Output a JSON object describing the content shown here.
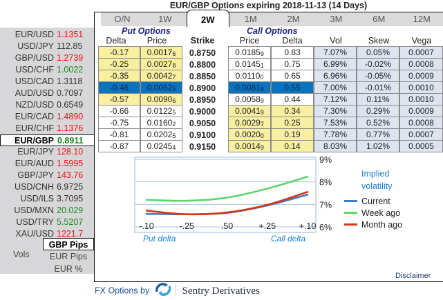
{
  "title": "EUR/GBP Options expiring 2018-11-13 (14 Days)",
  "rates": [
    {
      "pair": "EUR/USD",
      "value": "1.1351",
      "color": "red"
    },
    {
      "pair": "USD/JPY",
      "value": "112.85",
      "color": "dark"
    },
    {
      "pair": "GBP/USD",
      "value": "1.2739",
      "color": "red"
    },
    {
      "pair": "USD/CHF",
      "value": "1.0022",
      "color": "green"
    },
    {
      "pair": "USD/CAD",
      "value": "1.3118",
      "color": "dark"
    },
    {
      "pair": "AUD/USD",
      "value": "0.7097",
      "color": "dark"
    },
    {
      "pair": "NZD/USD",
      "value": "0.6549",
      "color": "dark"
    },
    {
      "pair": "EUR/CAD",
      "value": "1.4890",
      "color": "red"
    },
    {
      "pair": "EUR/CHF",
      "value": "1.1376",
      "color": "red"
    },
    {
      "pair": "EUR/GBP",
      "value": "0.8911",
      "color": "green",
      "selected": true
    },
    {
      "pair": "EUR/JPY",
      "value": "128.10",
      "color": "red"
    },
    {
      "pair": "EUR/AUD",
      "value": "1.5995",
      "color": "red"
    },
    {
      "pair": "GBP/JPY",
      "value": "143.76",
      "color": "red"
    },
    {
      "pair": "USD/CNH",
      "value": "6.9725",
      "color": "dark"
    },
    {
      "pair": "USD/ILS",
      "value": "3.7095",
      "color": "dark"
    },
    {
      "pair": "USD/MXN",
      "value": "20.029",
      "color": "green"
    },
    {
      "pair": "USD/TRY",
      "value": "5.5207",
      "color": "green"
    },
    {
      "pair": "XAU/USD",
      "value": "1221.7",
      "color": "red"
    }
  ],
  "units": {
    "label": "Vols",
    "options": [
      {
        "label": "GBP Pips",
        "active": true
      },
      {
        "label": "EUR Pips",
        "active": false
      },
      {
        "label": "EUR %",
        "active": false
      }
    ]
  },
  "tabs": [
    {
      "label": "O/N",
      "active": false
    },
    {
      "label": "1W",
      "active": false
    },
    {
      "label": "2W",
      "active": true
    },
    {
      "label": "1M",
      "active": false
    },
    {
      "label": "2M",
      "active": false
    },
    {
      "label": "3M",
      "active": false
    },
    {
      "label": "6M",
      "active": false
    },
    {
      "label": "12M",
      "active": false
    }
  ],
  "sections": {
    "put": "Put Options",
    "call": "Call Options"
  },
  "headers": {
    "put_delta": "Delta",
    "put_price": "Price",
    "strike": "Strike",
    "call_price": "Price",
    "call_delta": "Delta",
    "vol": "Vol",
    "skew": "Skew",
    "vega": "Vega"
  },
  "rows": [
    {
      "put_delta": "-0.17",
      "put_price": "0.0017",
      "put_price_pip": "6",
      "strike": "0.8750",
      "call_price": "0.0185",
      "call_price_pip": "9",
      "call_delta": "0.83",
      "vol": "7.07%",
      "skew": "0.05%",
      "vega": "0.0007",
      "put_itm": false
    },
    {
      "put_delta": "-0.25",
      "put_price": "0.0027",
      "put_price_pip": "8",
      "strike": "0.8800",
      "call_price": "0.0145",
      "call_price_pip": "1",
      "call_delta": "0.75",
      "vol": "6.99%",
      "skew": "-0.02%",
      "vega": "0.0008",
      "put_itm": false
    },
    {
      "put_delta": "-0.35",
      "put_price": "0.0042",
      "put_price_pip": "7",
      "strike": "0.8850",
      "call_price": "0.0110",
      "call_price_pip": "0",
      "call_delta": "0.65",
      "vol": "6.96%",
      "skew": "-0.05%",
      "vega": "0.0009",
      "put_itm": false
    },
    {
      "put_delta": "-0.46",
      "put_price": "0.0062",
      "put_price_pip": "5",
      "strike": "0.8900",
      "call_price": "0.0081",
      "call_price_pip": "8",
      "call_delta": "0.55",
      "vol": "7.00%",
      "skew": "-0.01%",
      "vega": "0.0010",
      "atm": true
    },
    {
      "put_delta": "-0.57",
      "put_price": "0.0090",
      "put_price_pip": "6",
      "strike": "0.8950",
      "call_price": "0.0058",
      "call_price_pip": "9",
      "call_delta": "0.44",
      "vol": "7.12%",
      "skew": "0.11%",
      "vega": "0.0010",
      "put_itm": false
    },
    {
      "put_delta": "-0.66",
      "put_price": "0.0122",
      "put_price_pip": "5",
      "strike": "0.9000",
      "call_price": "0.0041",
      "call_price_pip": "9",
      "call_delta": "0.34",
      "vol": "7.30%",
      "skew": "0.29%",
      "vega": "0.0009",
      "put_itm": true
    },
    {
      "put_delta": "-0.75",
      "put_price": "0.0160",
      "put_price_pip": "2",
      "strike": "0.9050",
      "call_price": "0.0029",
      "call_price_pip": "7",
      "call_delta": "0.25",
      "vol": "7.53%",
      "skew": "0.52%",
      "vega": "0.0008",
      "put_itm": true
    },
    {
      "put_delta": "-0.81",
      "put_price": "0.0202",
      "put_price_pip": "5",
      "strike": "0.9100",
      "call_price": "0.0020",
      "call_price_pip": "0",
      "call_delta": "0.19",
      "vol": "7.78%",
      "skew": "0.77%",
      "vega": "0.0007",
      "put_itm": true
    },
    {
      "put_delta": "-0.87",
      "put_price": "0.0245",
      "put_price_pip": "4",
      "strike": "0.9150",
      "call_price": "0.0014",
      "call_price_pip": "9",
      "call_delta": "0.14",
      "vol": "8.03%",
      "skew": "1.02%",
      "vega": "0.0005",
      "put_itm": true
    }
  ],
  "chart_data": {
    "type": "line",
    "title": "Implied volatility",
    "x": [
      "-.10",
      "-.25",
      ".50",
      "+.25",
      "+.10"
    ],
    "xlabel_left": "Put delta",
    "xlabel_right": "Call delta",
    "ylim": [
      6,
      9
    ],
    "yticks": [
      "9%",
      "8%",
      "7%",
      "6%"
    ],
    "grid": true,
    "legend_position": "right",
    "series": [
      {
        "name": "Current",
        "color": "#3a7fc0",
        "values": [
          6.58,
          6.56,
          6.62,
          6.95,
          7.43
        ]
      },
      {
        "name": "Week ago",
        "color": "#5cd46a",
        "values": [
          7.2,
          7.16,
          7.3,
          7.7,
          8.23
        ]
      },
      {
        "name": "Month ago",
        "color": "#d9311a",
        "values": [
          6.72,
          6.56,
          6.64,
          6.98,
          7.55
        ]
      }
    ]
  },
  "disclaimer": "Disclaimer",
  "footer": {
    "by": "FX Options by",
    "brand": "Sentry Derivatives"
  }
}
